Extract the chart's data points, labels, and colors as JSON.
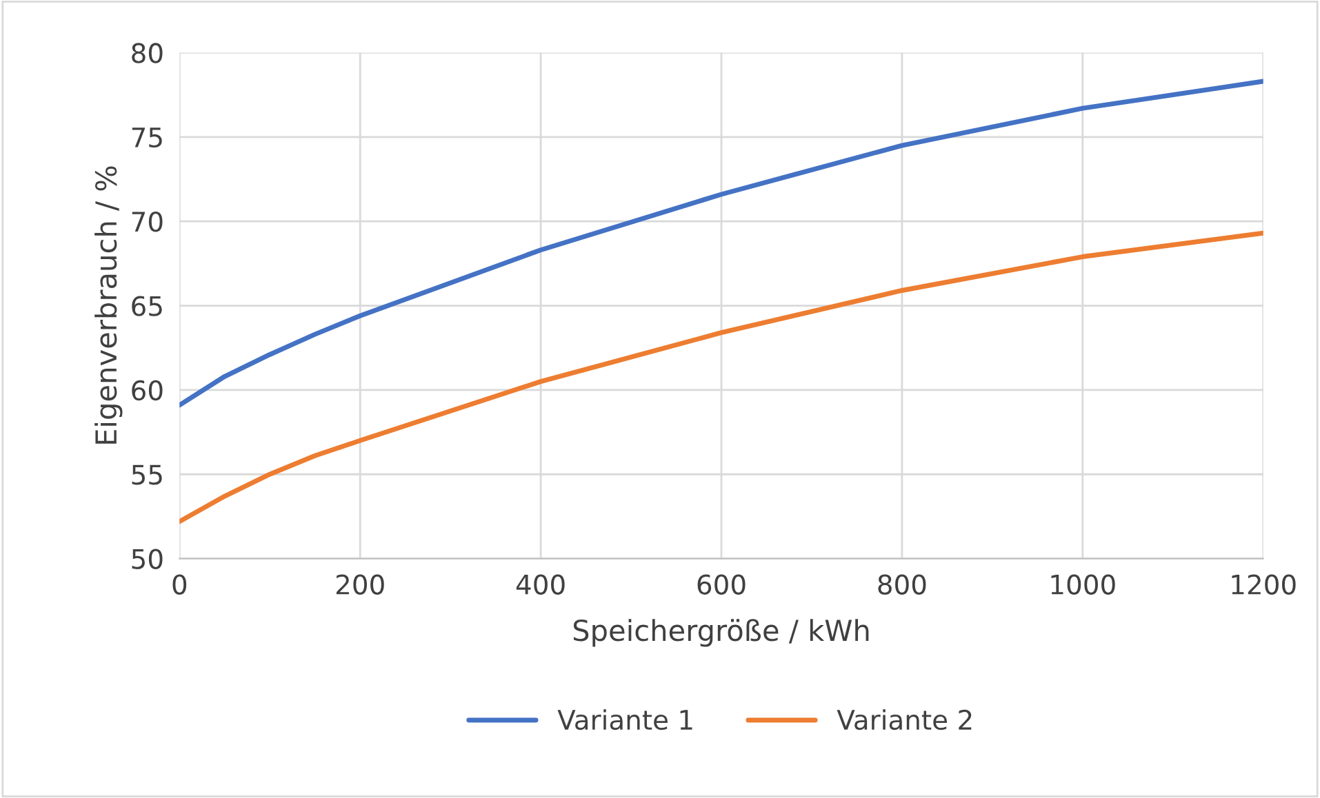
{
  "chart_data": {
    "type": "line",
    "xlabel": "Speichergröße / kWh",
    "ylabel": "Eigenverbrauch / %",
    "xlim": [
      0,
      1200
    ],
    "xticks": [
      0,
      200,
      400,
      600,
      800,
      1000,
      1200
    ],
    "ylim": [
      50,
      80
    ],
    "yticks": [
      50,
      55,
      60,
      65,
      70,
      75,
      80
    ],
    "grid": true,
    "legend": "bottom",
    "marker": "none",
    "line_style": "solid",
    "series": [
      {
        "name": "Variante 1",
        "color": "#4472c4",
        "x": [
          0,
          50,
          100,
          150,
          200,
          400,
          600,
          800,
          1000,
          1200
        ],
        "values": [
          59.1,
          60.8,
          62.1,
          63.3,
          64.4,
          68.3,
          71.6,
          74.5,
          76.7,
          78.3
        ]
      },
      {
        "name": "Variante 2",
        "color": "#ed7d31",
        "x": [
          0,
          50,
          100,
          150,
          200,
          400,
          600,
          800,
          1000,
          1200
        ],
        "values": [
          52.2,
          53.7,
          55.0,
          56.1,
          57.0,
          60.5,
          63.4,
          65.9,
          67.9,
          69.3
        ]
      }
    ]
  }
}
